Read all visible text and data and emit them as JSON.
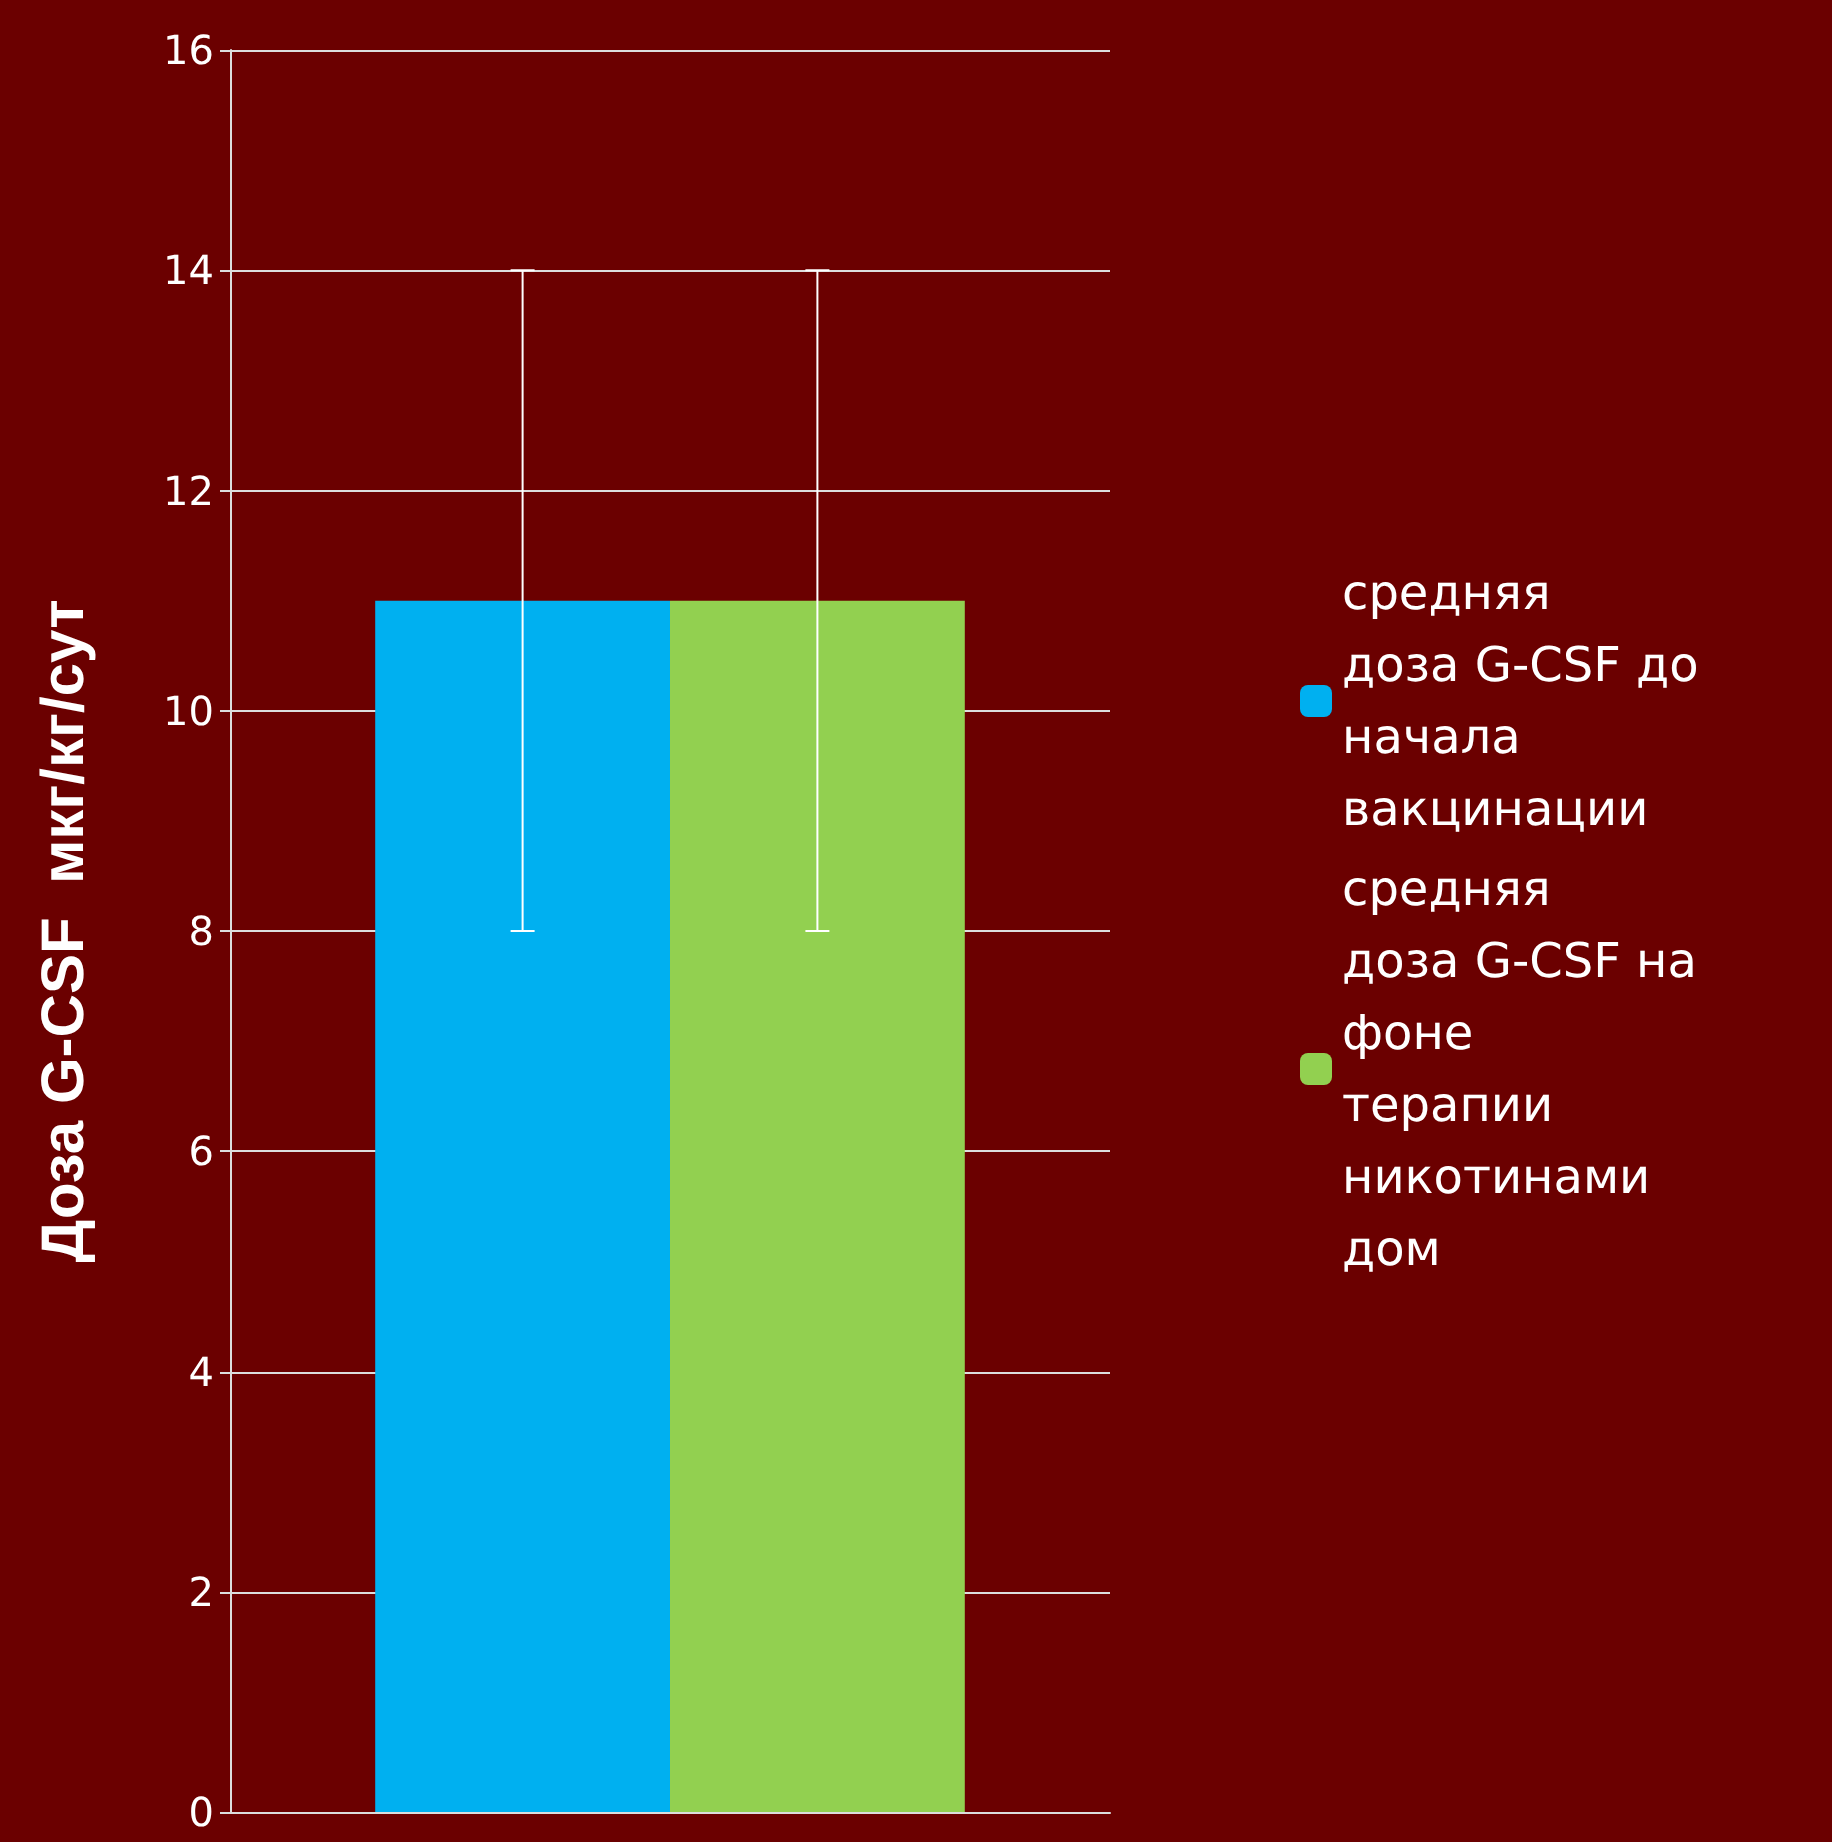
{
  "chart_data": {
    "type": "bar",
    "ylabel": "Доза G-CSF  мкг/кг/сут",
    "categories": [
      null
    ],
    "series": [
      {
        "name": "средняя доза G-CSF до начала вакцинации",
        "color": "#00b0f0",
        "values": [
          11
        ],
        "errors": [
          3
        ]
      },
      {
        "name": "средняя доза G-CSF на фоне терапии никотинамидом",
        "color": "#92d050",
        "values": [
          11
        ],
        "errors": [
          3
        ]
      }
    ],
    "ylim": [
      0,
      16
    ],
    "yticks": [
      0,
      2,
      4,
      6,
      8,
      10,
      12,
      14,
      16
    ],
    "grid": "y",
    "legend": "right",
    "tick_labels": "y"
  }
}
